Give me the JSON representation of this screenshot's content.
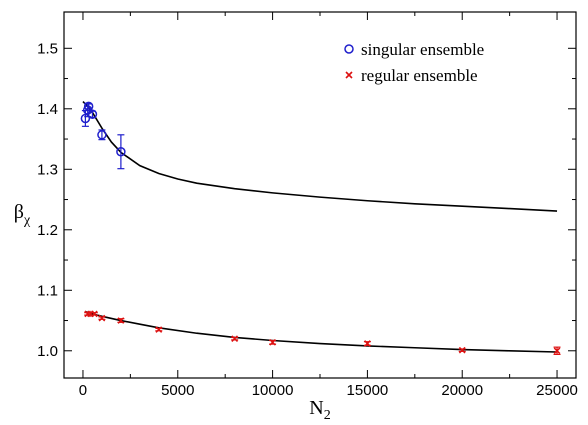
{
  "chart_data": {
    "type": "scatter",
    "xlabel": {
      "main": "N",
      "sub": "2"
    },
    "ylabel": {
      "main": "β",
      "sub": "χ"
    },
    "xlim": [
      -1000,
      26000
    ],
    "ylim": [
      0.955,
      1.56
    ],
    "x_ticks": [
      0,
      5000,
      10000,
      15000,
      20000,
      25000
    ],
    "y_ticks": [
      "1.0",
      "1.1",
      "1.2",
      "1.3",
      "1.4",
      "1.5"
    ],
    "legend_position": "top-right",
    "grid": false,
    "series": [
      {
        "name": "singular ensemble",
        "marker": "circle",
        "color": "#1f1fcc",
        "points": [
          {
            "x": 128,
            "y": 1.384,
            "err": 0.013
          },
          {
            "x": 250,
            "y": 1.398,
            "err": 0.011
          },
          {
            "x": 300,
            "y": 1.404,
            "err": 0.004
          },
          {
            "x": 500,
            "y": 1.391,
            "err": 0.005
          },
          {
            "x": 1000,
            "y": 1.357,
            "err": 0.008
          },
          {
            "x": 2000,
            "y": 1.329,
            "err": 0.028
          }
        ],
        "fit": [
          {
            "x": 0,
            "y": 1.412
          },
          {
            "x": 250,
            "y": 1.404
          },
          {
            "x": 500,
            "y": 1.394
          },
          {
            "x": 1000,
            "y": 1.368
          },
          {
            "x": 1500,
            "y": 1.345
          },
          {
            "x": 2000,
            "y": 1.328
          },
          {
            "x": 3000,
            "y": 1.306
          },
          {
            "x": 4000,
            "y": 1.293
          },
          {
            "x": 5000,
            "y": 1.284
          },
          {
            "x": 6000,
            "y": 1.277
          },
          {
            "x": 8000,
            "y": 1.268
          },
          {
            "x": 10000,
            "y": 1.261
          },
          {
            "x": 12500,
            "y": 1.254
          },
          {
            "x": 15000,
            "y": 1.248
          },
          {
            "x": 17500,
            "y": 1.243
          },
          {
            "x": 20000,
            "y": 1.239
          },
          {
            "x": 22500,
            "y": 1.235
          },
          {
            "x": 25000,
            "y": 1.231
          }
        ]
      },
      {
        "name": "regular ensemble",
        "marker": "x",
        "color": "#dd1111",
        "points": [
          {
            "x": 250,
            "y": 1.061,
            "err": 0.002
          },
          {
            "x": 400,
            "y": 1.061,
            "err": 0.002
          },
          {
            "x": 600,
            "y": 1.061,
            "err": 0.002
          },
          {
            "x": 1000,
            "y": 1.054,
            "err": 0.002
          },
          {
            "x": 2000,
            "y": 1.05,
            "err": 0.003
          },
          {
            "x": 4000,
            "y": 1.035,
            "err": 0.002
          },
          {
            "x": 8000,
            "y": 1.02,
            "err": 0.002
          },
          {
            "x": 10000,
            "y": 1.014,
            "err": 0.003
          },
          {
            "x": 15000,
            "y": 1.012,
            "err": 0.003
          },
          {
            "x": 20000,
            "y": 1.001,
            "err": 0.002
          },
          {
            "x": 25000,
            "y": 1.0,
            "err": 0.006
          }
        ],
        "fit": [
          {
            "x": 100,
            "y": 1.065
          },
          {
            "x": 500,
            "y": 1.061
          },
          {
            "x": 1000,
            "y": 1.057
          },
          {
            "x": 2000,
            "y": 1.05
          },
          {
            "x": 3000,
            "y": 1.044
          },
          {
            "x": 4000,
            "y": 1.038
          },
          {
            "x": 6000,
            "y": 1.029
          },
          {
            "x": 8000,
            "y": 1.022
          },
          {
            "x": 10000,
            "y": 1.017
          },
          {
            "x": 12500,
            "y": 1.012
          },
          {
            "x": 15000,
            "y": 1.008
          },
          {
            "x": 17500,
            "y": 1.005
          },
          {
            "x": 20000,
            "y": 1.002
          },
          {
            "x": 22500,
            "y": 1.0
          },
          {
            "x": 25000,
            "y": 0.998
          }
        ]
      }
    ]
  }
}
